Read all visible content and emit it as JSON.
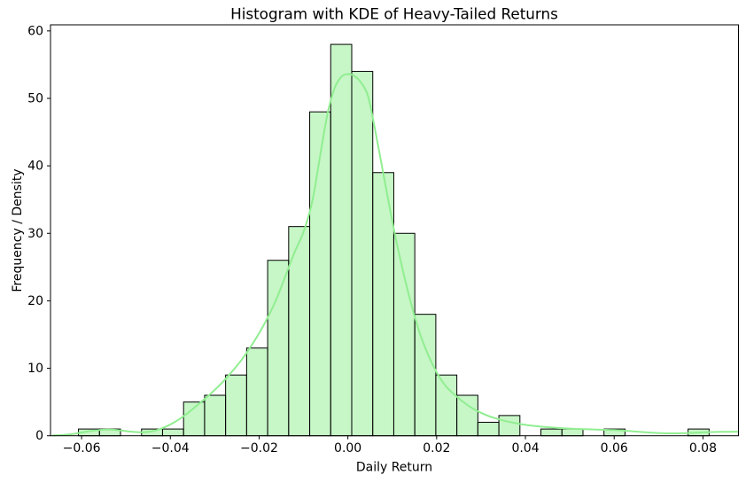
{
  "chart_data": {
    "type": "bar",
    "subtype": "histogram_with_kde_overlay",
    "title": "Histogram with KDE of Heavy-Tailed Returns",
    "xlabel": "Daily Return",
    "ylabel": "Frequency / Density",
    "xlim": [
      -0.067,
      0.088
    ],
    "ylim": [
      0,
      60.9
    ],
    "grid": false,
    "legend": "none",
    "x_ticks": {
      "values": [
        -0.06,
        -0.04,
        -0.02,
        0.0,
        0.02,
        0.04,
        0.06,
        0.08
      ],
      "labels": [
        "−0.06",
        "−0.04",
        "−0.02",
        "0.00",
        "0.02",
        "0.04",
        "0.06",
        "0.08"
      ]
    },
    "y_ticks": {
      "values": [
        0,
        10,
        20,
        30,
        40,
        50,
        60
      ],
      "labels": [
        "0",
        "10",
        "20",
        "30",
        "40",
        "50",
        "60"
      ]
    },
    "histogram": {
      "bin_start": -0.0607,
      "bin_width": 0.004736,
      "n_bins": 30,
      "counts": [
        1,
        1,
        0,
        1,
        1,
        5,
        6,
        9,
        13,
        26,
        31,
        48,
        58,
        54,
        39,
        30,
        18,
        9,
        6,
        2,
        3,
        0,
        1,
        1,
        0,
        1,
        0,
        0,
        0,
        1
      ],
      "total_count": 365
    },
    "kde_curve": {
      "points": [
        [
          -0.0665,
          0.05
        ],
        [
          -0.064,
          0.12
        ],
        [
          -0.062,
          0.25
        ],
        [
          -0.0605,
          0.42
        ],
        [
          -0.059,
          0.6
        ],
        [
          -0.057,
          0.78
        ],
        [
          -0.055,
          0.9
        ],
        [
          -0.053,
          0.9
        ],
        [
          -0.051,
          0.78
        ],
        [
          -0.049,
          0.62
        ],
        [
          -0.047,
          0.52
        ],
        [
          -0.0455,
          0.55
        ],
        [
          -0.044,
          0.68
        ],
        [
          -0.0425,
          0.95
        ],
        [
          -0.041,
          1.35
        ],
        [
          -0.0395,
          1.85
        ],
        [
          -0.038,
          2.45
        ],
        [
          -0.036,
          3.4
        ],
        [
          -0.034,
          4.5
        ],
        [
          -0.032,
          5.6
        ],
        [
          -0.03,
          6.8
        ],
        [
          -0.028,
          8.1
        ],
        [
          -0.026,
          9.6
        ],
        [
          -0.024,
          11.2
        ],
        [
          -0.022,
          13.1
        ],
        [
          -0.02,
          15.2
        ],
        [
          -0.018,
          17.6
        ],
        [
          -0.016,
          20.4
        ],
        [
          -0.014,
          23.8
        ],
        [
          -0.012,
          27.2
        ],
        [
          -0.01,
          30.2
        ],
        [
          -0.008,
          34.8
        ],
        [
          -0.006,
          42.5
        ],
        [
          -0.0045,
          48.0
        ],
        [
          -0.003,
          51.5
        ],
        [
          -0.0015,
          53.2
        ],
        [
          0.0,
          53.6
        ],
        [
          0.0015,
          53.3
        ],
        [
          0.003,
          52.3
        ],
        [
          0.0045,
          50.4
        ],
        [
          0.006,
          45.8
        ],
        [
          0.008,
          38.8
        ],
        [
          0.01,
          31.8
        ],
        [
          0.012,
          25.6
        ],
        [
          0.014,
          20.2
        ],
        [
          0.016,
          15.6
        ],
        [
          0.018,
          12.1
        ],
        [
          0.02,
          9.4
        ],
        [
          0.022,
          7.4
        ],
        [
          0.024,
          6.1
        ],
        [
          0.026,
          5.0
        ],
        [
          0.028,
          4.1
        ],
        [
          0.03,
          3.4
        ],
        [
          0.032,
          2.85
        ],
        [
          0.034,
          2.45
        ],
        [
          0.036,
          2.1
        ],
        [
          0.038,
          1.85
        ],
        [
          0.04,
          1.62
        ],
        [
          0.042,
          1.45
        ],
        [
          0.044,
          1.32
        ],
        [
          0.046,
          1.22
        ],
        [
          0.048,
          1.13
        ],
        [
          0.05,
          1.06
        ],
        [
          0.052,
          1.0
        ],
        [
          0.054,
          0.96
        ],
        [
          0.056,
          0.92
        ],
        [
          0.058,
          0.88
        ],
        [
          0.06,
          0.84
        ],
        [
          0.062,
          0.77
        ],
        [
          0.064,
          0.67
        ],
        [
          0.066,
          0.57
        ],
        [
          0.068,
          0.47
        ],
        [
          0.07,
          0.4
        ],
        [
          0.072,
          0.36
        ],
        [
          0.074,
          0.35
        ],
        [
          0.076,
          0.38
        ],
        [
          0.078,
          0.44
        ],
        [
          0.08,
          0.5
        ],
        [
          0.082,
          0.55
        ],
        [
          0.084,
          0.58
        ],
        [
          0.088,
          0.6
        ]
      ]
    },
    "colors": {
      "bar_fill": "#90ee90",
      "bar_fill_alpha": 0.5,
      "bar_edge": "#000000",
      "kde_line": "#90ee90",
      "axes": "#000000",
      "background": "#ffffff"
    }
  }
}
